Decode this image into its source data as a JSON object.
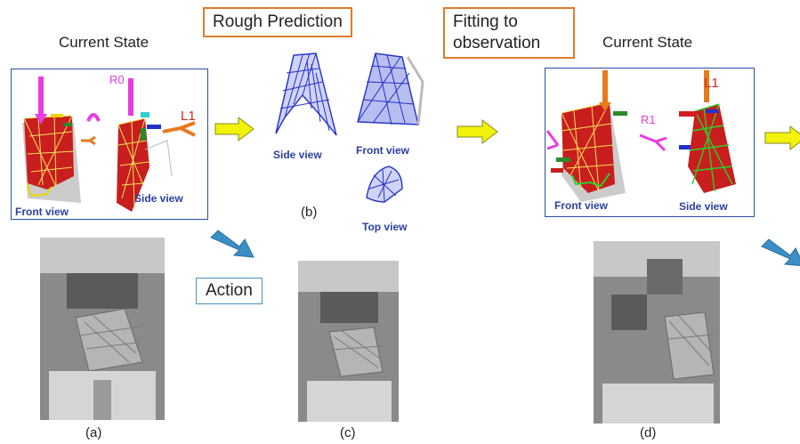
{
  "titles": {
    "current_state_left": "Current State",
    "rough_prediction": "Rough Prediction",
    "fitting": "Fitting to observation",
    "current_state_right": "Current State",
    "action": "Action"
  },
  "panels": {
    "left": {
      "front_view": "Front view",
      "side_view": "Side view",
      "r0": "R0",
      "l1": "L1"
    },
    "prediction": {
      "side_view": "Side view",
      "front_view": "Front view",
      "top_view": "Top view"
    },
    "right": {
      "front_view": "Front view",
      "side_view": "Side view",
      "l1": "L1",
      "r1": "R1"
    }
  },
  "captions": {
    "a": "(a)",
    "b": "(b)",
    "c": "(c)",
    "d": "(d)"
  },
  "colors": {
    "yellow_arrow": "#f2f20a",
    "blue_arrow": "#3a8fc6",
    "orange_box": "#e07b2a",
    "panel_border": "#2b4fa0",
    "mesh_red": "#c81e1e",
    "mesh_blue": "#2330c8",
    "gripper_magenta": "#e83be0",
    "gripper_orange": "#e87a1e"
  }
}
